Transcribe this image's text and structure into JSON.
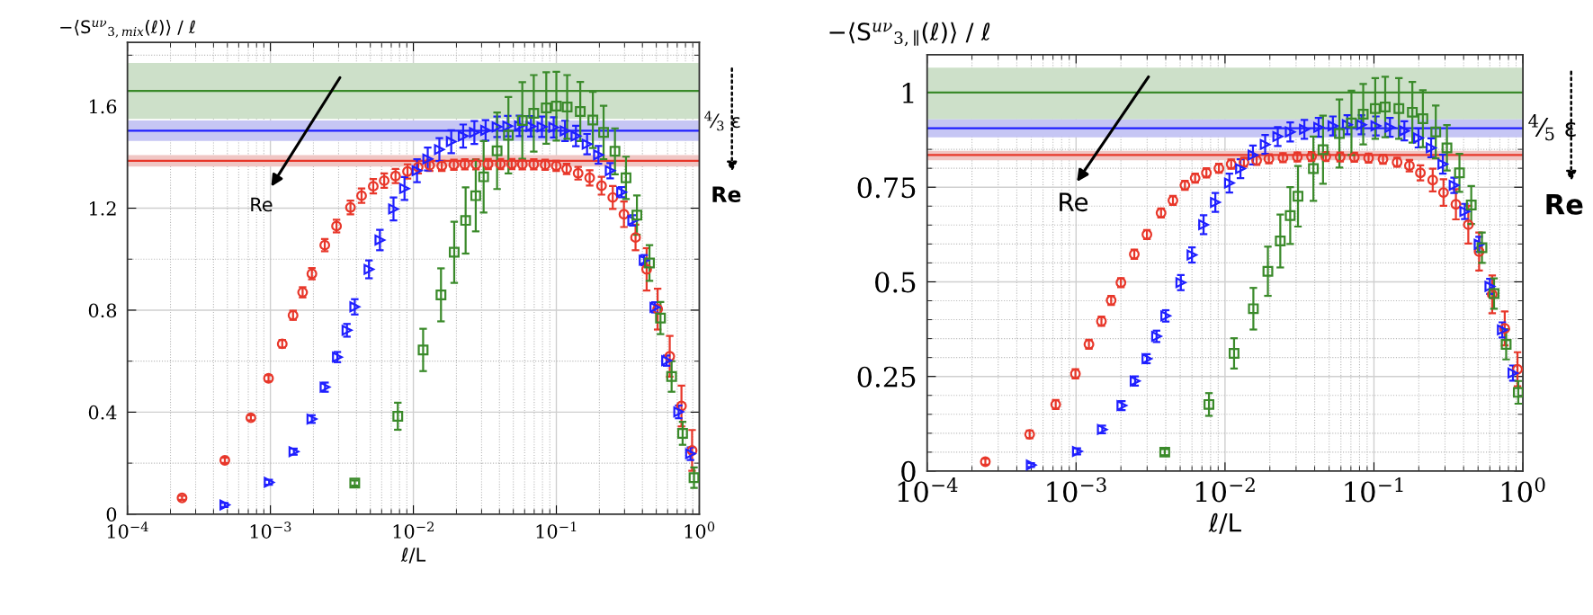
{
  "chart_data": [
    {
      "type": "scatter",
      "xlabel": "ℓ/L",
      "ylabel": "−⟨S$^{uν}$$_{3,mix}$(ℓ)⟩ / ℓ",
      "log": "x",
      "grid": true,
      "xlim": [
        0.0001,
        1
      ],
      "ylim": [
        0,
        1.85
      ],
      "xticks": [
        {
          "value": 0.0001,
          "label": "10$^{−4}$"
        },
        {
          "value": 0.001,
          "label": "10$^{−3}$"
        },
        {
          "value": 0.01,
          "label": "10$^{−2}$"
        },
        {
          "value": 0.1,
          "label": "10$^{−1}$"
        },
        {
          "value": 1,
          "label": "10$^{0}$"
        }
      ],
      "yticks": [
        0,
        {
          "value": 0.2,
          "label": null
        },
        0.4,
        {
          "value": 0.6,
          "label": null
        },
        0.8,
        {
          "value": 1.0,
          "label": null
        },
        1.2,
        {
          "value": 1.4,
          "label": null
        },
        1.6,
        {
          "value": 1.8,
          "label": null
        }
      ],
      "bands": [
        {
          "axis": "y",
          "from": 1.55,
          "to": 1.77,
          "color": "#cde0c9"
        },
        {
          "axis": "y",
          "from": 1.464,
          "to": 1.544,
          "color": "#c6c6f4"
        },
        {
          "axis": "y",
          "from": 1.363,
          "to": 1.408,
          "color": "#f0c6c4"
        }
      ],
      "ref_lines": [
        {
          "axis": "y",
          "value": 1.66,
          "color": "#3a8a2a"
        },
        {
          "axis": "y",
          "value": 1.504,
          "color": "#1f1fff"
        },
        {
          "axis": "y",
          "value": 1.386,
          "color": "#e8372a"
        }
      ],
      "annotations": [
        "Re",
        "Re",
        "$^{4}$⁄$_{3}$ ε"
      ],
      "series": [
        {
          "color": "#e8372a",
          "marker": "circle",
          "x": [
            0.000241,
            0.00048,
            0.00073,
            0.00097,
            0.00121,
            0.00144,
            0.00168,
            0.00195,
            0.0024,
            0.0029,
            0.00363,
            0.00434,
            0.00524,
            0.00625,
            0.0075,
            0.0091,
            0.0108,
            0.013,
            0.0158,
            0.0192,
            0.0229,
            0.0274,
            0.0333,
            0.0406,
            0.0487,
            0.0578,
            0.0695,
            0.0835,
            0.0998,
            0.118,
            0.142,
            0.171,
            0.207,
            0.248,
            0.297,
            0.358,
            0.428,
            0.511,
            0.621,
            0.75,
            0.89
          ],
          "values": [
            0.064,
            0.211,
            0.378,
            0.533,
            0.668,
            0.78,
            0.87,
            0.943,
            1.055,
            1.13,
            1.203,
            1.249,
            1.286,
            1.308,
            1.326,
            1.344,
            1.361,
            1.368,
            1.366,
            1.37,
            1.372,
            1.372,
            1.373,
            1.373,
            1.373,
            1.372,
            1.372,
            1.37,
            1.366,
            1.354,
            1.337,
            1.319,
            1.288,
            1.242,
            1.176,
            1.085,
            0.96,
            0.804,
            0.619,
            0.424,
            0.25
          ],
          "errors": [
            0.008,
            0.01,
            0.01,
            0.012,
            0.015,
            0.018,
            0.02,
            0.022,
            0.024,
            0.025,
            0.027,
            0.028,
            0.028,
            0.028,
            0.028,
            0.028,
            0.025,
            0.022,
            0.02,
            0.02,
            0.02,
            0.02,
            0.02,
            0.02,
            0.02,
            0.02,
            0.02,
            0.02,
            0.02,
            0.02,
            0.025,
            0.03,
            0.035,
            0.045,
            0.05,
            0.05,
            0.083,
            0.08,
            0.08,
            0.08,
            0.08
          ]
        },
        {
          "color": "#1f1fff",
          "marker": "triangle",
          "x": [
            0.00048,
            0.00098,
            0.00146,
            0.00195,
            0.00241,
            0.00294,
            0.00343,
            0.00389,
            0.00489,
            0.00583,
            0.00726,
            0.00867,
            0.0106,
            0.0126,
            0.0152,
            0.0184,
            0.0223,
            0.0267,
            0.032,
            0.0385,
            0.0457,
            0.0552,
            0.0664,
            0.0793,
            0.0958,
            0.115,
            0.137,
            0.164,
            0.197,
            0.238,
            0.286,
            0.342,
            0.411,
            0.489,
            0.59,
            0.717,
            0.867
          ],
          "values": [
            0.036,
            0.125,
            0.245,
            0.373,
            0.498,
            0.616,
            0.721,
            0.813,
            0.96,
            1.075,
            1.197,
            1.277,
            1.347,
            1.393,
            1.43,
            1.461,
            1.483,
            1.497,
            1.505,
            1.519,
            1.522,
            1.523,
            1.521,
            1.519,
            1.517,
            1.503,
            1.483,
            1.451,
            1.409,
            1.347,
            1.263,
            1.152,
            0.996,
            0.811,
            0.602,
            0.401,
            0.237
          ],
          "errors": [
            0.008,
            0.01,
            0.012,
            0.015,
            0.018,
            0.02,
            0.025,
            0.03,
            0.035,
            0.04,
            0.045,
            0.045,
            0.045,
            0.045,
            0.045,
            0.045,
            0.045,
            0.045,
            0.04,
            0.04,
            0.04,
            0.04,
            0.04,
            0.04,
            0.04,
            0.04,
            0.04,
            0.04,
            0.035,
            0.03,
            0.02,
            0.02,
            0.02,
            0.02,
            0.02,
            0.025,
            0.025
          ]
        },
        {
          "color": "#3a8a2a",
          "marker": "square",
          "x": [
            0.00389,
            0.00778,
            0.0117,
            0.0156,
            0.0193,
            0.0232,
            0.0273,
            0.031,
            0.0385,
            0.0462,
            0.0578,
            0.0695,
            0.085,
            0.1,
            0.119,
            0.147,
            0.18,
            0.214,
            0.257,
            0.307,
            0.366,
            0.448,
            0.535,
            0.64,
            0.764,
            0.918
          ],
          "values": [
            0.122,
            0.384,
            0.644,
            0.86,
            1.027,
            1.152,
            1.249,
            1.323,
            1.425,
            1.486,
            1.544,
            1.572,
            1.593,
            1.6,
            1.597,
            1.579,
            1.546,
            1.497,
            1.423,
            1.319,
            1.173,
            0.985,
            0.769,
            0.54,
            0.317,
            0.143
          ],
          "errors": [
            0.01,
            0.053,
            0.083,
            0.104,
            0.12,
            0.13,
            0.14,
            0.14,
            0.15,
            0.15,
            0.15,
            0.15,
            0.14,
            0.135,
            0.125,
            0.116,
            0.11,
            0.105,
            0.09,
            0.083,
            0.077,
            0.07,
            0.063,
            0.06,
            0.045,
            0.04
          ]
        }
      ]
    },
    {
      "type": "scatter",
      "xlabel": "ℓ/L",
      "ylabel": "−⟨S$^{uν}$$_{3,∥}$(ℓ)⟩ / ℓ",
      "log": "x",
      "grid": true,
      "xlim": [
        0.0001,
        1
      ],
      "ylim": [
        0,
        1.1
      ],
      "xticks": [
        {
          "value": 0.0001,
          "label": "10$^{−4}$"
        },
        {
          "value": 0.001,
          "label": "10$^{−3}$"
        },
        {
          "value": 0.01,
          "label": "10$^{−2}$"
        },
        {
          "value": 0.1,
          "label": "10$^{−1}$"
        },
        {
          "value": 1,
          "label": "10$^{0}$"
        }
      ],
      "yticks": [
        0,
        {
          "value": 0.05,
          "label": null
        },
        {
          "value": 0.1,
          "label": null
        },
        {
          "value": 0.15,
          "label": null
        },
        {
          "value": 0.2,
          "label": null
        },
        0.25,
        {
          "value": 0.3,
          "label": null
        },
        {
          "value": 0.35,
          "label": null
        },
        {
          "value": 0.4,
          "label": null
        },
        {
          "value": 0.45,
          "label": null
        },
        0.5,
        {
          "value": 0.55,
          "label": null
        },
        {
          "value": 0.6,
          "label": null
        },
        {
          "value": 0.65,
          "label": null
        },
        {
          "value": 0.7,
          "label": null
        },
        0.75,
        {
          "value": 0.8,
          "label": null
        },
        {
          "value": 0.85,
          "label": null
        },
        {
          "value": 0.9,
          "label": null
        },
        {
          "value": 0.95,
          "label": null
        },
        1,
        {
          "value": 1.05,
          "label": null
        }
      ],
      "bands": [
        {
          "axis": "y",
          "from": 0.929,
          "to": 1.066,
          "color": "#cde0c9"
        },
        {
          "axis": "y",
          "from": 0.882,
          "to": 0.929,
          "color": "#c6c6f4"
        },
        {
          "axis": "y",
          "from": 0.821,
          "to": 0.846,
          "color": "#f0c6c4"
        }
      ],
      "ref_lines": [
        {
          "axis": "y",
          "value": 1.0,
          "color": "#3a8a2a"
        },
        {
          "axis": "y",
          "value": 0.906,
          "color": "#1f1fff"
        },
        {
          "axis": "y",
          "value": 0.835,
          "color": "#e8372a"
        }
      ],
      "annotations": [
        "Re",
        "Re",
        "$^{4}$⁄$_{5}$ ε"
      ],
      "series": [
        {
          "color": "#e8372a",
          "marker": "circle",
          "x": [
            0.000246,
            0.000488,
            0.00073,
            0.00099,
            0.00122,
            0.00148,
            0.00172,
            0.002,
            0.00246,
            0.00299,
            0.00372,
            0.00447,
            0.00538,
            0.0063,
            0.0075,
            0.0091,
            0.011,
            0.0134,
            0.0163,
            0.0197,
            0.0245,
            0.0306,
            0.0381,
            0.0475,
            0.0593,
            0.0738,
            0.092,
            0.115,
            0.143,
            0.173,
            0.205,
            0.248,
            0.293,
            0.355,
            0.43,
            0.508,
            0.622,
            0.755,
            0.92
          ],
          "values": [
            0.025,
            0.097,
            0.176,
            0.257,
            0.335,
            0.396,
            0.451,
            0.498,
            0.573,
            0.625,
            0.682,
            0.715,
            0.755,
            0.774,
            0.788,
            0.8,
            0.811,
            0.816,
            0.821,
            0.825,
            0.828,
            0.83,
            0.831,
            0.831,
            0.83,
            0.829,
            0.827,
            0.824,
            0.816,
            0.807,
            0.788,
            0.769,
            0.736,
            0.705,
            0.651,
            0.58,
            0.467,
            0.377,
            0.269
          ],
          "errors": [
            0.008,
            0.01,
            0.012,
            0.012,
            0.012,
            0.012,
            0.012,
            0.012,
            0.012,
            0.012,
            0.012,
            0.012,
            0.012,
            0.012,
            0.012,
            0.012,
            0.012,
            0.012,
            0.012,
            0.012,
            0.012,
            0.012,
            0.012,
            0.012,
            0.012,
            0.012,
            0.012,
            0.012,
            0.012,
            0.015,
            0.02,
            0.03,
            0.035,
            0.04,
            0.05,
            0.05,
            0.05,
            0.045,
            0.045
          ]
        },
        {
          "color": "#1f1fff",
          "marker": "triangle",
          "x": [
            0.0005,
            0.00102,
            0.0015,
            0.00203,
            0.00249,
            0.00299,
            0.00347,
            0.004,
            0.00505,
            0.006,
            0.00718,
            0.00861,
            0.0107,
            0.0127,
            0.0154,
            0.0186,
            0.0226,
            0.0274,
            0.0341,
            0.0425,
            0.053,
            0.0662,
            0.0824,
            0.103,
            0.128,
            0.16,
            0.199,
            0.242,
            0.29,
            0.345,
            0.407,
            0.508,
            0.6,
            0.727,
            0.857
          ],
          "values": [
            0.016,
            0.052,
            0.11,
            0.173,
            0.238,
            0.297,
            0.356,
            0.41,
            0.498,
            0.571,
            0.651,
            0.71,
            0.761,
            0.799,
            0.835,
            0.863,
            0.884,
            0.896,
            0.903,
            0.908,
            0.912,
            0.915,
            0.915,
            0.912,
            0.908,
            0.899,
            0.88,
            0.854,
            0.811,
            0.755,
            0.686,
            0.599,
            0.488,
            0.373,
            0.259
          ],
          "errors": [
            0.005,
            0.008,
            0.01,
            0.012,
            0.012,
            0.012,
            0.015,
            0.015,
            0.02,
            0.02,
            0.025,
            0.025,
            0.025,
            0.025,
            0.025,
            0.025,
            0.025,
            0.025,
            0.025,
            0.025,
            0.025,
            0.025,
            0.025,
            0.025,
            0.025,
            0.025,
            0.025,
            0.025,
            0.025,
            0.02,
            0.02,
            0.02,
            0.02,
            0.02,
            0.02
          ]
        },
        {
          "color": "#3a8a2a",
          "marker": "square",
          "x": [
            0.00394,
            0.0078,
            0.0115,
            0.0155,
            0.0194,
            0.0235,
            0.0274,
            0.0309,
            0.0392,
            0.0455,
            0.0586,
            0.0706,
            0.0847,
            0.102,
            0.119,
            0.147,
            0.181,
            0.213,
            0.26,
            0.309,
            0.375,
            0.45,
            0.531,
            0.64,
            0.772,
            0.931
          ],
          "values": [
            0.05,
            0.176,
            0.311,
            0.429,
            0.528,
            0.608,
            0.675,
            0.726,
            0.799,
            0.849,
            0.892,
            0.92,
            0.943,
            0.958,
            0.962,
            0.958,
            0.948,
            0.931,
            0.896,
            0.854,
            0.788,
            0.703,
            0.59,
            0.469,
            0.335,
            0.208
          ],
          "errors": [
            0.008,
            0.03,
            0.04,
            0.055,
            0.065,
            0.07,
            0.075,
            0.08,
            0.085,
            0.09,
            0.09,
            0.085,
            0.08,
            0.08,
            0.08,
            0.08,
            0.08,
            0.075,
            0.07,
            0.06,
            0.05,
            0.05,
            0.04,
            0.04,
            0.04,
            0.03
          ]
        }
      ]
    }
  ]
}
